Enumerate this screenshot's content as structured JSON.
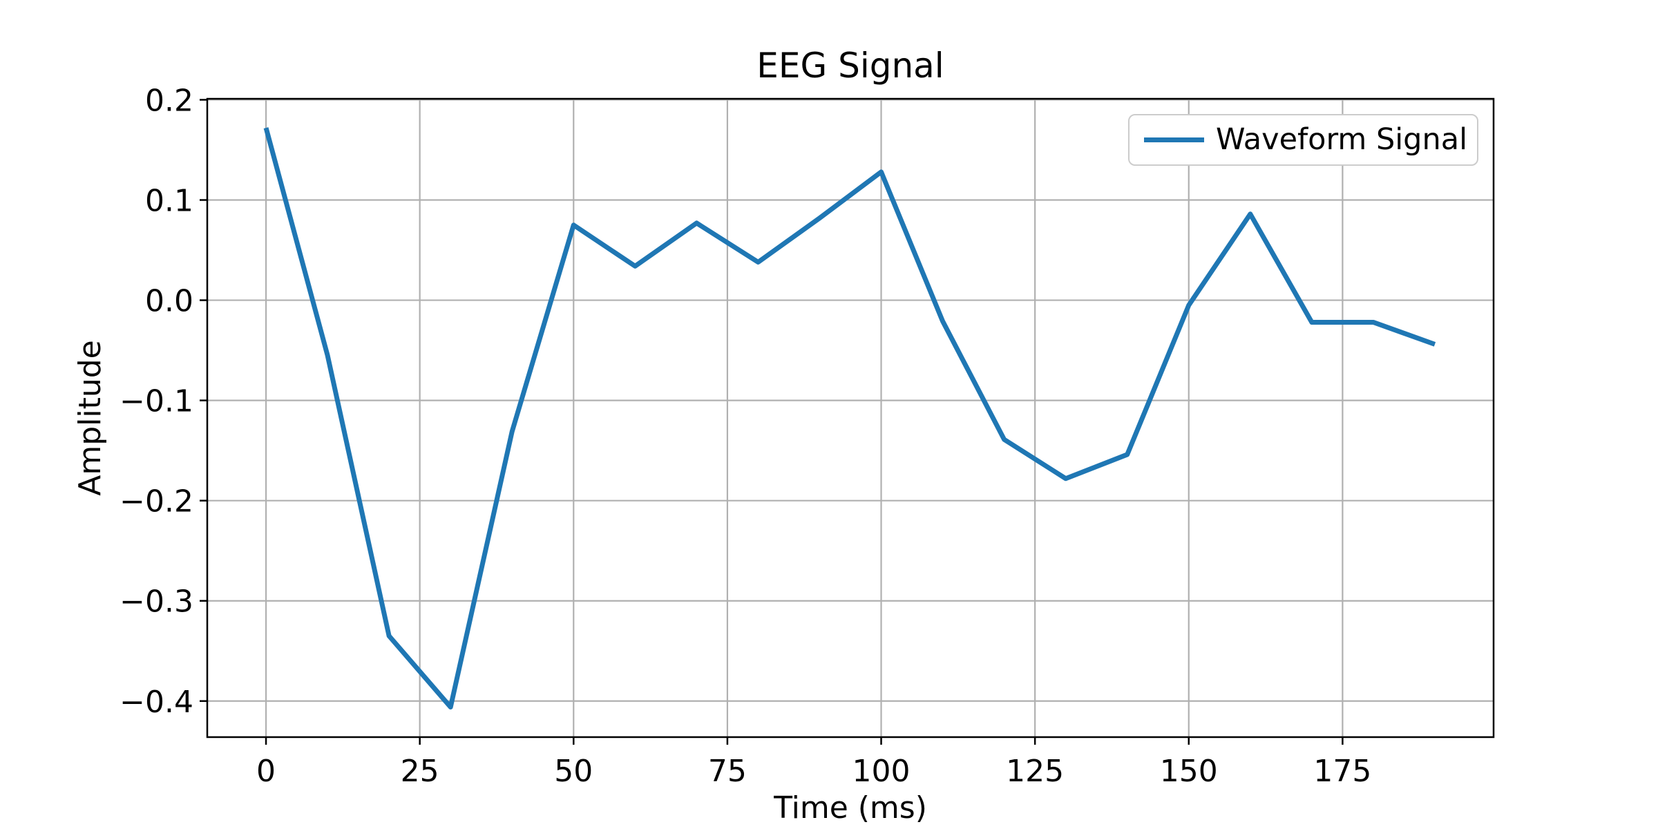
{
  "chart_data": {
    "type": "line",
    "title": "EEG Signal",
    "xlabel": "Time (ms)",
    "ylabel": "Amplitude",
    "grid": true,
    "grid_color": "#b0b0b0",
    "spine_color": "#000000",
    "background_color": "#ffffff",
    "legend": {
      "label": "Waveform Signal",
      "position": "upper right"
    },
    "series": [
      {
        "name": "Waveform Signal",
        "color": "#1f77b4",
        "x": [
          0,
          10,
          20,
          30,
          40,
          50,
          60,
          70,
          80,
          90,
          100,
          110,
          120,
          130,
          140,
          150,
          160,
          170,
          180,
          190
        ],
        "y": [
          0.172,
          -0.055,
          -0.335,
          -0.406,
          -0.131,
          0.075,
          0.034,
          0.077,
          0.038,
          0.082,
          0.128,
          -0.021,
          -0.139,
          -0.178,
          -0.154,
          -0.005,
          0.086,
          -0.022,
          -0.022,
          -0.044
        ]
      }
    ],
    "xlim": [
      -9.55,
      199.55
    ],
    "ylim": [
      -0.436,
      0.201
    ],
    "xticks": [
      0,
      25,
      50,
      75,
      100,
      125,
      150,
      175
    ],
    "xtick_labels": [
      "0",
      "25",
      "50",
      "75",
      "100",
      "125",
      "150",
      "175"
    ],
    "yticks": [
      0.2,
      0.1,
      0.0,
      -0.1,
      -0.2,
      -0.3,
      -0.4
    ],
    "ytick_labels": [
      "0.2",
      "0.1",
      "0.0",
      "−0.1",
      "−0.2",
      "−0.3",
      "−0.4"
    ]
  }
}
